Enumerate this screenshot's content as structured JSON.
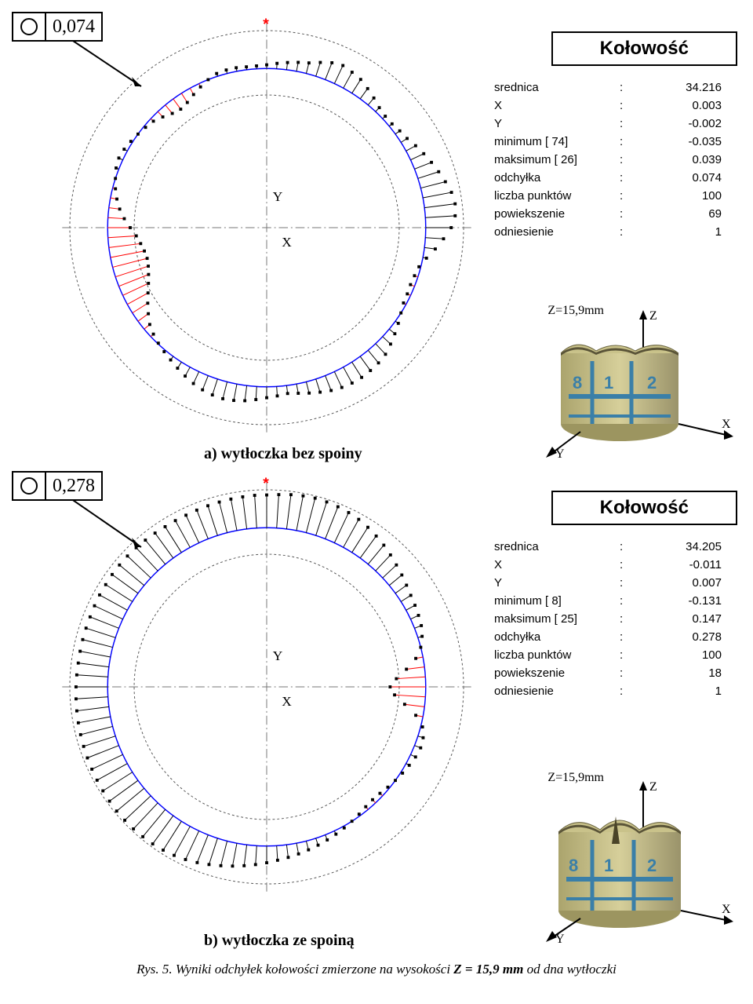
{
  "panel_a": {
    "tolerance": "0,074",
    "caption": "a) wytłoczka bez spoiny",
    "info_title": "Kołowość",
    "rows": [
      {
        "label": "srednica",
        "value": "34.216"
      },
      {
        "label": "X",
        "value": "0.003"
      },
      {
        "label": "Y",
        "value": "-0.002"
      },
      {
        "label": "minimum [ 74]",
        "value": "-0.035"
      },
      {
        "label": "maksimum [ 26]",
        "value": "0.039"
      },
      {
        "label": "odchyłka",
        "value": "0.074"
      },
      {
        "label": "liczba punktów",
        "value": "100"
      },
      {
        "label": "powiekszenie",
        "value": "69"
      },
      {
        "label": "odniesienie",
        "value": "1"
      }
    ],
    "z_text": "Z=15,9mm",
    "plot": {
      "n_points": 100,
      "base_radius": 210,
      "outer_dash_r": 260,
      "inner_dash_r": 175,
      "axis_len": 270,
      "ref_color": "#0000ff",
      "dev_line_color": "#000000",
      "neg_color": "#ff0000",
      "marker_color": "#000000",
      "marker_size": 4,
      "amp": 48,
      "pattern": [
        0.1,
        0.15,
        0.2,
        0.25,
        0.3,
        0.4,
        0.5,
        0.55,
        0.5,
        0.45,
        0.35,
        0.25,
        0.15,
        0.1,
        0.1,
        0.15,
        0.2,
        0.3,
        0.4,
        0.5,
        0.6,
        0.7,
        0.8,
        0.85,
        0.82,
        0.7,
        0.5,
        0.3,
        0.1,
        -0.05,
        -0.1,
        -0.12,
        -0.1,
        -0.08,
        0,
        0.1,
        0.2,
        0.3,
        0.4,
        0.45,
        0.48,
        0.5,
        0.5,
        0.48,
        0.44,
        0.38,
        0.32,
        0.26,
        0.22,
        0.26,
        0.3,
        0.36,
        0.42,
        0.46,
        0.48,
        0.46,
        0.42,
        0.36,
        0.28,
        0.2,
        0.12,
        0.05,
        -0.02,
        -0.1,
        -0.2,
        -0.35,
        -0.5,
        -0.65,
        -0.78,
        -0.88,
        -0.95,
        -0.98,
        -0.95,
        -0.88,
        -0.78,
        -0.62,
        -0.45,
        -0.3,
        -0.18,
        -0.08,
        0,
        0.08,
        0.12,
        0.1,
        0.05,
        0,
        -0.05,
        -0.1,
        -0.2,
        -0.3,
        -0.35,
        -0.3,
        -0.2,
        -0.1,
        0,
        0.08,
        0.1,
        0.1,
        0.08,
        0.08
      ]
    }
  },
  "panel_b": {
    "tolerance": "0,278",
    "caption": "b) wytłoczka ze spoiną",
    "info_title": "Kołowość",
    "rows": [
      {
        "label": "srednica",
        "value": "34.205"
      },
      {
        "label": "X",
        "value": "-0.011"
      },
      {
        "label": "Y",
        "value": "0.007"
      },
      {
        "label": "minimum [  8]",
        "value": "-0.131"
      },
      {
        "label": "maksimum [ 25]",
        "value": "0.147"
      },
      {
        "label": "odchyłka",
        "value": "0.278"
      },
      {
        "label": "liczba punktów",
        "value": "100"
      },
      {
        "label": "powiekszenie",
        "value": "18"
      },
      {
        "label": "odniesienie",
        "value": "1"
      }
    ],
    "z_text": "Z=15,9mm",
    "plot": {
      "n_points": 100,
      "base_radius": 210,
      "outer_dash_r": 260,
      "inner_dash_r": 175,
      "axis_len": 270,
      "ref_color": "#0000ff",
      "dev_line_color": "#000000",
      "neg_color": "#ff0000",
      "marker_color": "#000000",
      "marker_size": 4,
      "amp": 48,
      "pattern": [
        0.9,
        0.92,
        0.95,
        0.97,
        0.98,
        0.97,
        0.95,
        0.92,
        0.88,
        0.82,
        0.75,
        0.68,
        0.6,
        0.52,
        0.45,
        0.38,
        0.32,
        0.28,
        0.24,
        0.2,
        0.12,
        0.0,
        -0.2,
        -0.5,
        -0.8,
        -0.98,
        -0.85,
        -0.55,
        -0.2,
        0.05,
        0.15,
        0.18,
        0.15,
        0.1,
        0.05,
        0,
        -0.05,
        -0.1,
        -0.12,
        -0.1,
        -0.05,
        0,
        0.05,
        0.1,
        0.15,
        0.2,
        0.25,
        0.3,
        0.35,
        0.4,
        0.46,
        0.52,
        0.58,
        0.64,
        0.7,
        0.76,
        0.82,
        0.87,
        0.91,
        0.94,
        0.96,
        0.97,
        0.98,
        0.98,
        0.98,
        0.97,
        0.96,
        0.95,
        0.94,
        0.93,
        0.92,
        0.91,
        0.9,
        0.89,
        0.88,
        0.87,
        0.86,
        0.85,
        0.85,
        0.85,
        0.85,
        0.85,
        0.86,
        0.87,
        0.87,
        0.88,
        0.88,
        0.88,
        0.87,
        0.86,
        0.85,
        0.84,
        0.84,
        0.84,
        0.85,
        0.86,
        0.87,
        0.88,
        0.89,
        0.9
      ]
    }
  },
  "figure_caption_pre": "Rys. 5. Wyniki odchyłek kołowości zmierzone na wysokości ",
  "figure_caption_bold": "Z = 15,9 mm",
  "figure_caption_post": " od dna wytłoczki",
  "colors": {
    "bg": "#ffffff",
    "text": "#000000",
    "dash": "#666666",
    "sample_body": "#c9c28a",
    "sample_paint": "#3a7fa8"
  }
}
